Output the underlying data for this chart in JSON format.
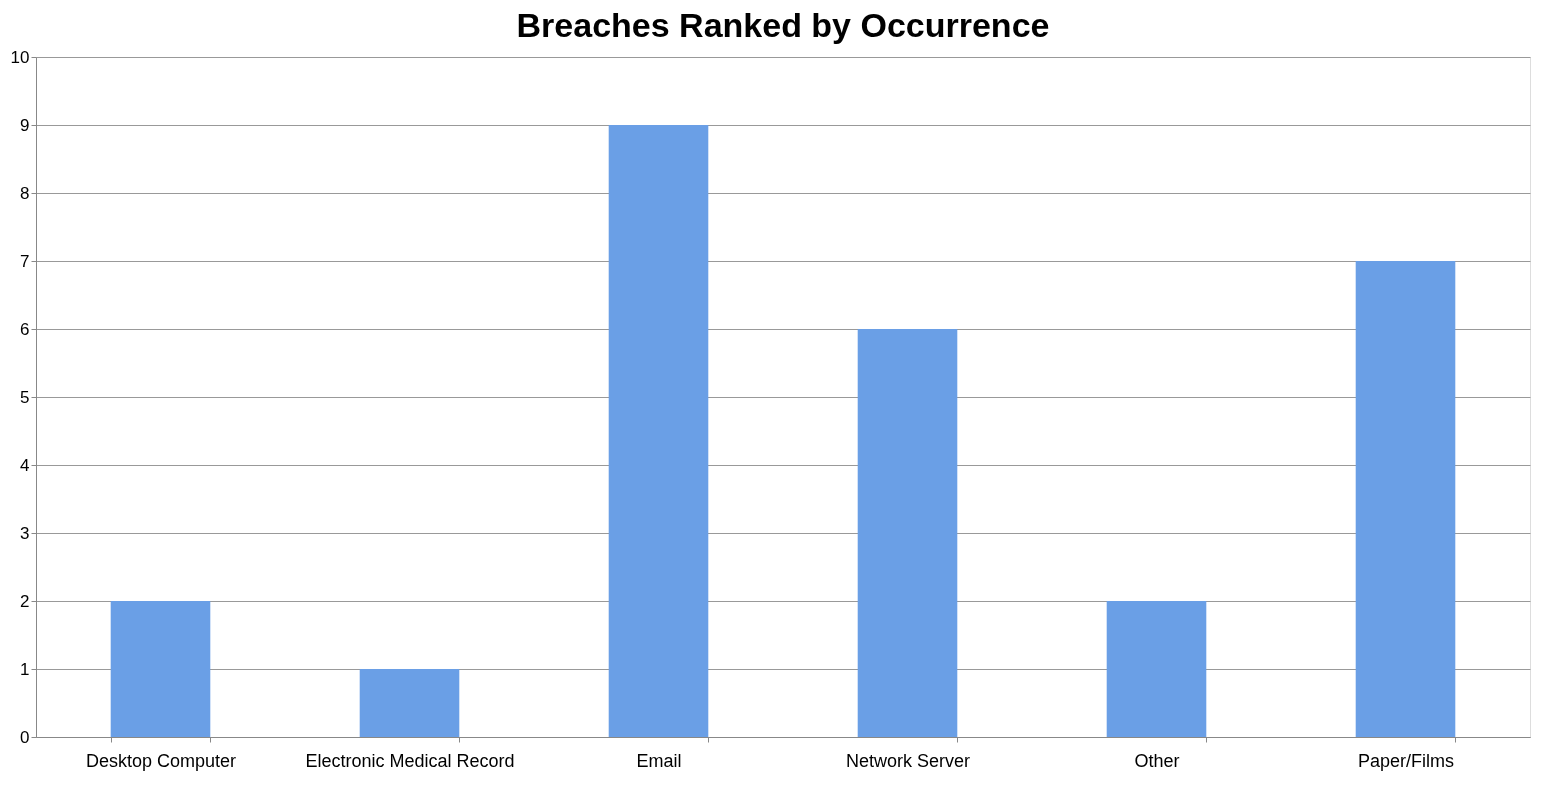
{
  "chart_data": {
    "type": "bar",
    "title": "Breaches Ranked by Occurrence",
    "categories": [
      "Desktop Computer",
      "Electronic Medical Record",
      "Email",
      "Network Server",
      "Other",
      "Paper/Films"
    ],
    "values": [
      2,
      1,
      9,
      6,
      2,
      7
    ],
    "color": "#6a9fe6",
    "ylim": [
      0,
      10
    ],
    "yticks": [
      0,
      1,
      2,
      3,
      4,
      5,
      6,
      7,
      8,
      9,
      10
    ],
    "grid": "y"
  }
}
